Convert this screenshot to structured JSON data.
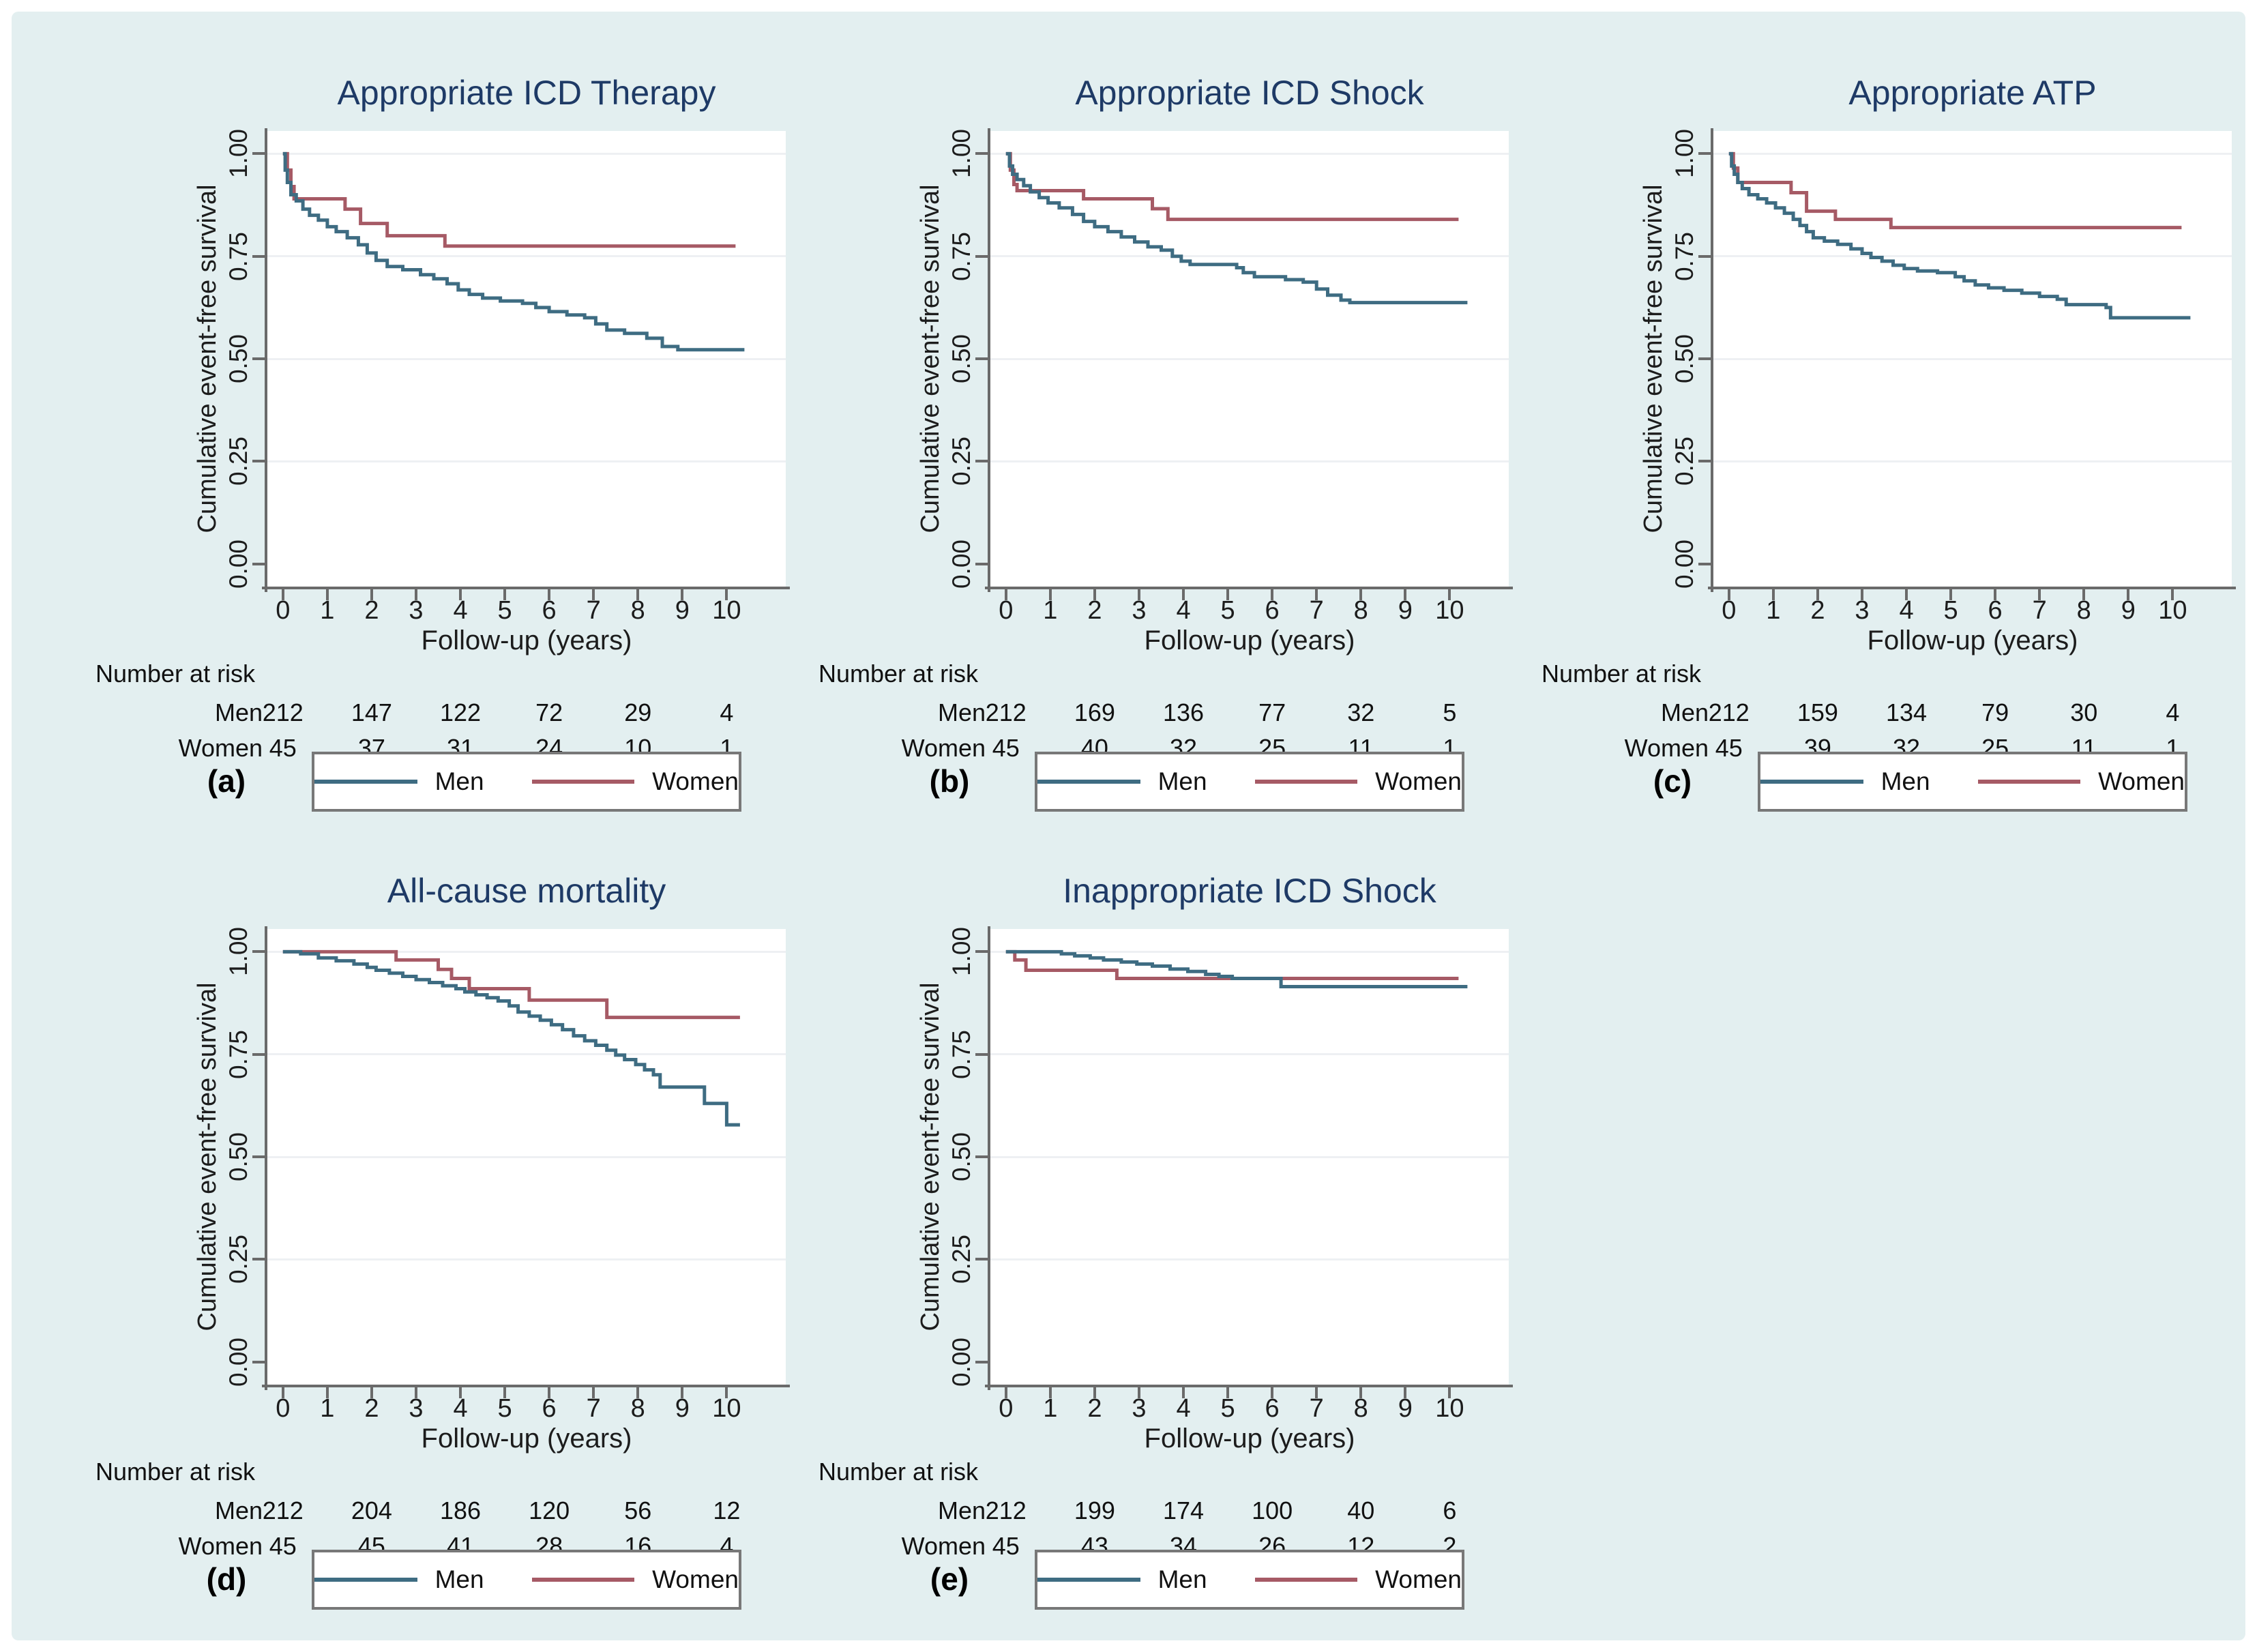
{
  "figure": {
    "background_color": "#e3eff0",
    "title_color": "#1e3a66",
    "men_color": "#3e6c82",
    "women_color": "#a65a65",
    "grid_color": "#eef0f3",
    "axis_color": "#6a6a6a",
    "ylabel": "Cumulative event-free survival",
    "xlabel": "Follow-up (years)",
    "y_ticks": [
      {
        "value": 0,
        "label": "0.00"
      },
      {
        "value": 0.25,
        "label": "0.25"
      },
      {
        "value": 0.5,
        "label": "0.50"
      },
      {
        "value": 0.75,
        "label": "0.75"
      },
      {
        "value": 1,
        "label": "1.00"
      }
    ],
    "grid_values": [
      0.25,
      0.5,
      0.75,
      1.0
    ],
    "x_ticks": [
      "0",
      "1",
      "2",
      "3",
      "4",
      "5",
      "6",
      "7",
      "8",
      "9",
      "10"
    ],
    "risk_header": "Number at risk",
    "risk_years": [
      0,
      2,
      4,
      6,
      8,
      10
    ],
    "legend": {
      "men_label": "Men",
      "women_label": "Women"
    }
  },
  "chart_data": [
    {
      "type": "line",
      "letter": "(a)",
      "title": "Appropriate ICD Therapy",
      "xlabel": "Follow-up (years)",
      "ylabel": "Cumulative event-free survival",
      "xlim": [
        0,
        10.6
      ],
      "ylim": [
        0,
        1
      ],
      "grid": true,
      "legend_position": "bottom",
      "series": [
        {
          "name": "Men",
          "points": [
            [
              0,
              1
            ],
            [
              0.05,
              0.96
            ],
            [
              0.1,
              0.93
            ],
            [
              0.18,
              0.9
            ],
            [
              0.3,
              0.885
            ],
            [
              0.45,
              0.865
            ],
            [
              0.6,
              0.85
            ],
            [
              0.8,
              0.838
            ],
            [
              1,
              0.822
            ],
            [
              1.2,
              0.81
            ],
            [
              1.45,
              0.795
            ],
            [
              1.7,
              0.778
            ],
            [
              1.9,
              0.758
            ],
            [
              2.1,
              0.74
            ],
            [
              2.35,
              0.725
            ],
            [
              2.7,
              0.717
            ],
            [
              3.1,
              0.705
            ],
            [
              3.4,
              0.695
            ],
            [
              3.7,
              0.683
            ],
            [
              3.95,
              0.668
            ],
            [
              4.2,
              0.657
            ],
            [
              4.5,
              0.648
            ],
            [
              4.9,
              0.641
            ],
            [
              5.4,
              0.635
            ],
            [
              5.7,
              0.625
            ],
            [
              6,
              0.615
            ],
            [
              6.4,
              0.607
            ],
            [
              6.8,
              0.6
            ],
            [
              7.05,
              0.585
            ],
            [
              7.3,
              0.57
            ],
            [
              7.7,
              0.562
            ],
            [
              8.2,
              0.55
            ],
            [
              8.55,
              0.53
            ],
            [
              8.9,
              0.522
            ],
            [
              10.4,
              0.522
            ]
          ]
        },
        {
          "name": "Women",
          "points": [
            [
              0,
              1
            ],
            [
              0.1,
              0.96
            ],
            [
              0.18,
              0.92
            ],
            [
              0.25,
              0.89
            ],
            [
              1.4,
              0.865
            ],
            [
              1.75,
              0.83
            ],
            [
              2.35,
              0.8
            ],
            [
              3.65,
              0.775
            ],
            [
              10.2,
              0.775
            ]
          ]
        }
      ],
      "risk_table": {
        "years": [
          0,
          2,
          4,
          6,
          8,
          10
        ],
        "rows": [
          {
            "label": "Men",
            "values": [
              "212",
              "147",
              "122",
              "72",
              "29",
              "4"
            ]
          },
          {
            "label": "Women",
            "values": [
              "45",
              "37",
              "31",
              "24",
              "10",
              "1"
            ]
          }
        ]
      }
    },
    {
      "type": "line",
      "letter": "(b)",
      "title": "Appropriate ICD Shock",
      "xlabel": "Follow-up (years)",
      "ylabel": "Cumulative event-free survival",
      "xlim": [
        0,
        10.6
      ],
      "ylim": [
        0,
        1
      ],
      "grid": true,
      "legend_position": "bottom",
      "series": [
        {
          "name": "Men",
          "points": [
            [
              0,
              1
            ],
            [
              0.08,
              0.97
            ],
            [
              0.15,
              0.95
            ],
            [
              0.25,
              0.937
            ],
            [
              0.4,
              0.922
            ],
            [
              0.55,
              0.907
            ],
            [
              0.75,
              0.893
            ],
            [
              0.95,
              0.88
            ],
            [
              1.2,
              0.868
            ],
            [
              1.5,
              0.852
            ],
            [
              1.75,
              0.835
            ],
            [
              2,
              0.822
            ],
            [
              2.3,
              0.81
            ],
            [
              2.6,
              0.797
            ],
            [
              2.9,
              0.785
            ],
            [
              3.2,
              0.773
            ],
            [
              3.5,
              0.765
            ],
            [
              3.75,
              0.75
            ],
            [
              3.95,
              0.738
            ],
            [
              4.15,
              0.73
            ],
            [
              5.2,
              0.722
            ],
            [
              5.35,
              0.71
            ],
            [
              5.6,
              0.7
            ],
            [
              6.3,
              0.693
            ],
            [
              6.7,
              0.687
            ],
            [
              7,
              0.67
            ],
            [
              7.25,
              0.655
            ],
            [
              7.55,
              0.643
            ],
            [
              7.75,
              0.637
            ],
            [
              10.4,
              0.637
            ]
          ]
        },
        {
          "name": "Women",
          "points": [
            [
              0,
              1
            ],
            [
              0.1,
              0.96
            ],
            [
              0.18,
              0.925
            ],
            [
              0.25,
              0.91
            ],
            [
              1.75,
              0.89
            ],
            [
              3.3,
              0.866
            ],
            [
              3.65,
              0.84
            ],
            [
              10.2,
              0.84
            ]
          ]
        }
      ],
      "risk_table": {
        "years": [
          0,
          2,
          4,
          6,
          8,
          10
        ],
        "rows": [
          {
            "label": "Men",
            "values": [
              "212",
              "169",
              "136",
              "77",
              "32",
              "5"
            ]
          },
          {
            "label": "Women",
            "values": [
              "45",
              "40",
              "32",
              "25",
              "11",
              "1"
            ]
          }
        ]
      }
    },
    {
      "type": "line",
      "letter": "(c)",
      "title": "Appropriate ATP",
      "xlabel": "Follow-up (years)",
      "ylabel": "Cumulative event-free survival",
      "xlim": [
        0,
        10.6
      ],
      "ylim": [
        0,
        1
      ],
      "grid": true,
      "legend_position": "bottom",
      "series": [
        {
          "name": "Men",
          "points": [
            [
              0,
              1
            ],
            [
              0.06,
              0.97
            ],
            [
              0.12,
              0.95
            ],
            [
              0.2,
              0.93
            ],
            [
              0.3,
              0.915
            ],
            [
              0.45,
              0.9
            ],
            [
              0.65,
              0.89
            ],
            [
              0.85,
              0.88
            ],
            [
              1.05,
              0.868
            ],
            [
              1.25,
              0.855
            ],
            [
              1.45,
              0.84
            ],
            [
              1.6,
              0.825
            ],
            [
              1.75,
              0.81
            ],
            [
              1.9,
              0.795
            ],
            [
              2.15,
              0.787
            ],
            [
              2.45,
              0.779
            ],
            [
              2.75,
              0.768
            ],
            [
              3,
              0.757
            ],
            [
              3.2,
              0.747
            ],
            [
              3.45,
              0.738
            ],
            [
              3.7,
              0.728
            ],
            [
              3.95,
              0.72
            ],
            [
              4.25,
              0.714
            ],
            [
              4.7,
              0.71
            ],
            [
              5.1,
              0.7
            ],
            [
              5.3,
              0.69
            ],
            [
              5.55,
              0.68
            ],
            [
              5.85,
              0.673
            ],
            [
              6.2,
              0.667
            ],
            [
              6.6,
              0.66
            ],
            [
              7,
              0.652
            ],
            [
              7.4,
              0.645
            ],
            [
              7.6,
              0.632
            ],
            [
              8.5,
              0.625
            ],
            [
              8.6,
              0.6
            ],
            [
              10.4,
              0.6
            ]
          ]
        },
        {
          "name": "Women",
          "points": [
            [
              0,
              1
            ],
            [
              0.1,
              0.965
            ],
            [
              0.2,
              0.93
            ],
            [
              1.4,
              0.905
            ],
            [
              1.75,
              0.86
            ],
            [
              2.4,
              0.84
            ],
            [
              3.65,
              0.82
            ],
            [
              10.2,
              0.82
            ]
          ]
        }
      ],
      "risk_table": {
        "years": [
          0,
          2,
          4,
          6,
          8,
          10
        ],
        "rows": [
          {
            "label": "Men",
            "values": [
              "212",
              "159",
              "134",
              "79",
              "30",
              "4"
            ]
          },
          {
            "label": "Women",
            "values": [
              "45",
              "39",
              "32",
              "25",
              "11",
              "1"
            ]
          }
        ]
      }
    },
    {
      "type": "line",
      "letter": "(d)",
      "title": "All-cause mortality",
      "xlabel": "Follow-up (years)",
      "ylabel": "Cumulative event-free survival",
      "xlim": [
        0,
        10.6
      ],
      "ylim": [
        0,
        1
      ],
      "grid": true,
      "legend_position": "bottom",
      "series": [
        {
          "name": "Men",
          "points": [
            [
              0,
              1
            ],
            [
              0.4,
              0.995
            ],
            [
              0.8,
              0.985
            ],
            [
              1.2,
              0.978
            ],
            [
              1.6,
              0.97
            ],
            [
              1.9,
              0.962
            ],
            [
              2.1,
              0.955
            ],
            [
              2.4,
              0.948
            ],
            [
              2.7,
              0.94
            ],
            [
              3,
              0.932
            ],
            [
              3.3,
              0.925
            ],
            [
              3.6,
              0.917
            ],
            [
              3.9,
              0.91
            ],
            [
              4.1,
              0.902
            ],
            [
              4.35,
              0.895
            ],
            [
              4.6,
              0.888
            ],
            [
              4.85,
              0.88
            ],
            [
              5.1,
              0.868
            ],
            [
              5.3,
              0.853
            ],
            [
              5.55,
              0.843
            ],
            [
              5.8,
              0.833
            ],
            [
              6.05,
              0.822
            ],
            [
              6.3,
              0.81
            ],
            [
              6.55,
              0.795
            ],
            [
              6.8,
              0.783
            ],
            [
              7.05,
              0.772
            ],
            [
              7.3,
              0.76
            ],
            [
              7.5,
              0.748
            ],
            [
              7.7,
              0.737
            ],
            [
              7.95,
              0.725
            ],
            [
              8.15,
              0.712
            ],
            [
              8.35,
              0.7
            ],
            [
              8.5,
              0.67
            ],
            [
              9.5,
              0.63
            ],
            [
              10,
              0.578
            ],
            [
              10.3,
              0.578
            ]
          ]
        },
        {
          "name": "Women",
          "points": [
            [
              0,
              1
            ],
            [
              2.55,
              0.98
            ],
            [
              3.5,
              0.957
            ],
            [
              3.8,
              0.935
            ],
            [
              4.2,
              0.91
            ],
            [
              5.55,
              0.882
            ],
            [
              7.3,
              0.84
            ],
            [
              10.3,
              0.84
            ]
          ]
        }
      ],
      "risk_table": {
        "years": [
          0,
          2,
          4,
          6,
          8,
          10
        ],
        "rows": [
          {
            "label": "Men",
            "values": [
              "212",
              "204",
              "186",
              "120",
              "56",
              "12"
            ]
          },
          {
            "label": "Women",
            "values": [
              "45",
              "45",
              "41",
              "28",
              "16",
              "4"
            ]
          }
        ]
      }
    },
    {
      "type": "line",
      "letter": "(e)",
      "title": "Inappropriate ICD Shock",
      "xlabel": "Follow-up (years)",
      "ylabel": "Cumulative event-free survival",
      "xlim": [
        0,
        10.6
      ],
      "ylim": [
        0,
        1
      ],
      "grid": true,
      "legend_position": "bottom",
      "series": [
        {
          "name": "Men",
          "points": [
            [
              0,
              1
            ],
            [
              1.25,
              0.995
            ],
            [
              1.55,
              0.99
            ],
            [
              1.9,
              0.985
            ],
            [
              2.2,
              0.98
            ],
            [
              2.6,
              0.975
            ],
            [
              2.95,
              0.97
            ],
            [
              3.3,
              0.965
            ],
            [
              3.7,
              0.958
            ],
            [
              4.1,
              0.952
            ],
            [
              4.5,
              0.945
            ],
            [
              4.8,
              0.94
            ],
            [
              5.1,
              0.935
            ],
            [
              6.2,
              0.915
            ],
            [
              10.4,
              0.915
            ]
          ]
        },
        {
          "name": "Women",
          "points": [
            [
              0,
              1
            ],
            [
              0.2,
              0.98
            ],
            [
              0.45,
              0.955
            ],
            [
              2.5,
              0.935
            ],
            [
              10.2,
              0.935
            ]
          ]
        }
      ],
      "risk_table": {
        "years": [
          0,
          2,
          4,
          6,
          8,
          10
        ],
        "rows": [
          {
            "label": "Men",
            "values": [
              "212",
              "199",
              "174",
              "100",
              "40",
              "6"
            ]
          },
          {
            "label": "Women",
            "values": [
              "45",
              "43",
              "34",
              "26",
              "12",
              "2"
            ]
          }
        ]
      }
    }
  ]
}
